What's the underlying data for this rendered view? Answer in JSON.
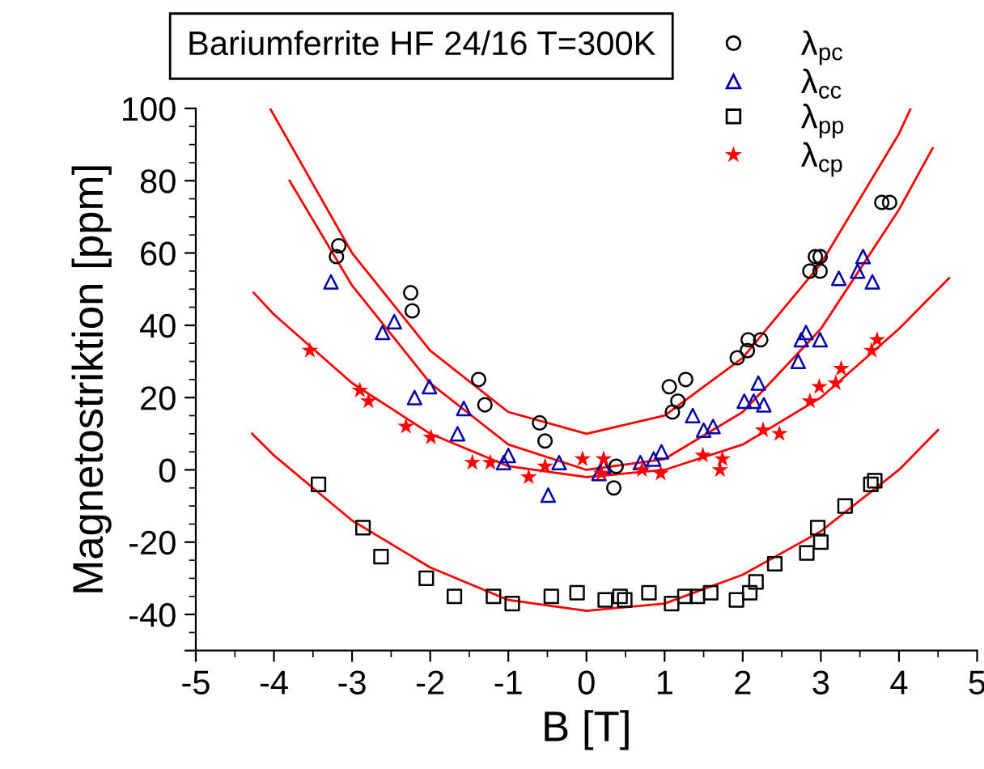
{
  "chart_data": {
    "type": "scatter",
    "xlabel": "B [T]",
    "ylabel": "Magnetostriktion [ppm]",
    "annotations": [
      "Bariumferrite HF 24/16 T=300K"
    ],
    "xlim": [
      -5,
      5
    ],
    "ylim": [
      -50,
      100
    ],
    "xticks": [
      -5,
      -4,
      -3,
      -2,
      -1,
      0,
      1,
      2,
      3,
      4,
      5
    ],
    "yticks": [
      {
        "value": -50,
        "label": null
      },
      -40,
      -20,
      0,
      20,
      40,
      60,
      80,
      100
    ],
    "grid": false,
    "legend": "top right",
    "series": [
      {
        "name": "λ$_{pc}$",
        "color": "#000000",
        "marker": "circle",
        "x": [
          -3.17,
          -3.2,
          -2.25,
          -2.23,
          -1.38,
          -1.3,
          -0.6,
          -0.53,
          0.38,
          0.35,
          1.1,
          1.17,
          1.06,
          1.27,
          1.93,
          2.06,
          2.07,
          2.23,
          2.86,
          2.99,
          2.93,
          2.99,
          3.78,
          3.88
        ],
        "values": [
          62,
          59,
          49,
          44,
          25,
          18,
          13,
          8,
          1,
          -5,
          16,
          19,
          23,
          25,
          31,
          33,
          36,
          36,
          55,
          55,
          59,
          59,
          74,
          74
        ]
      },
      {
        "name": "λ$_{cc}$",
        "color": "#0000aa",
        "marker": "triangle",
        "x": [
          -3.27,
          -2.46,
          -2.61,
          -2.2,
          -2.01,
          -1.57,
          -1.65,
          -1.0,
          -1.06,
          -0.49,
          -0.35,
          0.16,
          0.22,
          0.69,
          0.86,
          0.96,
          1.36,
          1.5,
          1.62,
          2.02,
          2.14,
          2.27,
          2.2,
          2.71,
          2.75,
          2.81,
          2.99,
          3.23,
          3.47,
          3.54,
          3.66
        ],
        "values": [
          52,
          41,
          38,
          20,
          23,
          17,
          10,
          4,
          2,
          -7,
          2,
          -1,
          1,
          2,
          3,
          5,
          15,
          11,
          12,
          19,
          19,
          18,
          24,
          30,
          36,
          38,
          36,
          53,
          55,
          59,
          52
        ]
      },
      {
        "name": "λ$_{pp}$",
        "color": "#000000",
        "marker": "square",
        "x": [
          -3.43,
          -2.86,
          -2.63,
          -2.05,
          -1.69,
          -1.19,
          -0.95,
          -0.45,
          -0.12,
          0.24,
          0.43,
          0.49,
          0.8,
          1.09,
          1.26,
          1.42,
          1.59,
          1.92,
          2.09,
          2.17,
          2.41,
          2.82,
          3.0,
          2.96,
          3.31,
          3.64,
          3.69
        ],
        "values": [
          -4,
          -16,
          -24,
          -30,
          -35,
          -35,
          -37,
          -35,
          -34,
          -36,
          -35,
          -36,
          -34,
          -37,
          -35,
          -35,
          -34,
          -36,
          -34,
          -31,
          -26,
          -23,
          -20,
          -16,
          -10,
          -4,
          -3
        ]
      },
      {
        "name": "λ$_{cp}$",
        "color": "#ff0000",
        "marker": "star",
        "x": [
          -3.54,
          -2.9,
          -2.79,
          -2.31,
          -1.99,
          -1.46,
          -1.23,
          -0.74,
          -0.53,
          -0.05,
          0.22,
          0.19,
          0.71,
          0.95,
          1.49,
          1.74,
          1.71,
          2.26,
          2.47,
          2.86,
          2.98,
          3.19,
          3.26,
          3.65,
          3.72
        ],
        "values": [
          33,
          22,
          19,
          12,
          9,
          2,
          2,
          -2,
          1,
          3,
          3,
          -1,
          0,
          -1,
          4,
          3,
          0,
          11,
          10,
          19,
          23,
          24,
          28,
          33,
          36
        ]
      },
      {
        "type": "line",
        "color": "#ff0000",
        "x": [
          -4.05,
          -3,
          -2,
          -1,
          0,
          1,
          2,
          3,
          4,
          4.15
        ],
        "values": [
          100,
          60,
          33,
          16,
          10,
          15,
          31,
          57,
          93,
          100
        ]
      },
      {
        "type": "line",
        "color": "#ff0000",
        "x": [
          -3.8,
          -3,
          -2,
          -1,
          0,
          1,
          2,
          3,
          4,
          4.43
        ],
        "values": [
          80,
          51,
          24,
          7,
          0,
          3,
          16,
          39,
          72,
          89
        ]
      },
      {
        "type": "line",
        "color": "#ff0000",
        "x": [
          -4.26,
          -4,
          -3,
          -2,
          -1,
          0,
          1,
          2,
          3,
          4,
          4.64
        ],
        "values": [
          49,
          43,
          24,
          10,
          1,
          -2,
          0,
          7,
          20,
          39,
          53
        ]
      },
      {
        "type": "line",
        "color": "#ff0000",
        "x": [
          -4.28,
          -4,
          -3,
          -2,
          -1,
          0,
          1,
          2,
          3,
          4,
          4.5
        ],
        "values": [
          10,
          4,
          -14,
          -27,
          -36,
          -39,
          -37,
          -29,
          -17,
          0,
          11
        ]
      }
    ]
  }
}
